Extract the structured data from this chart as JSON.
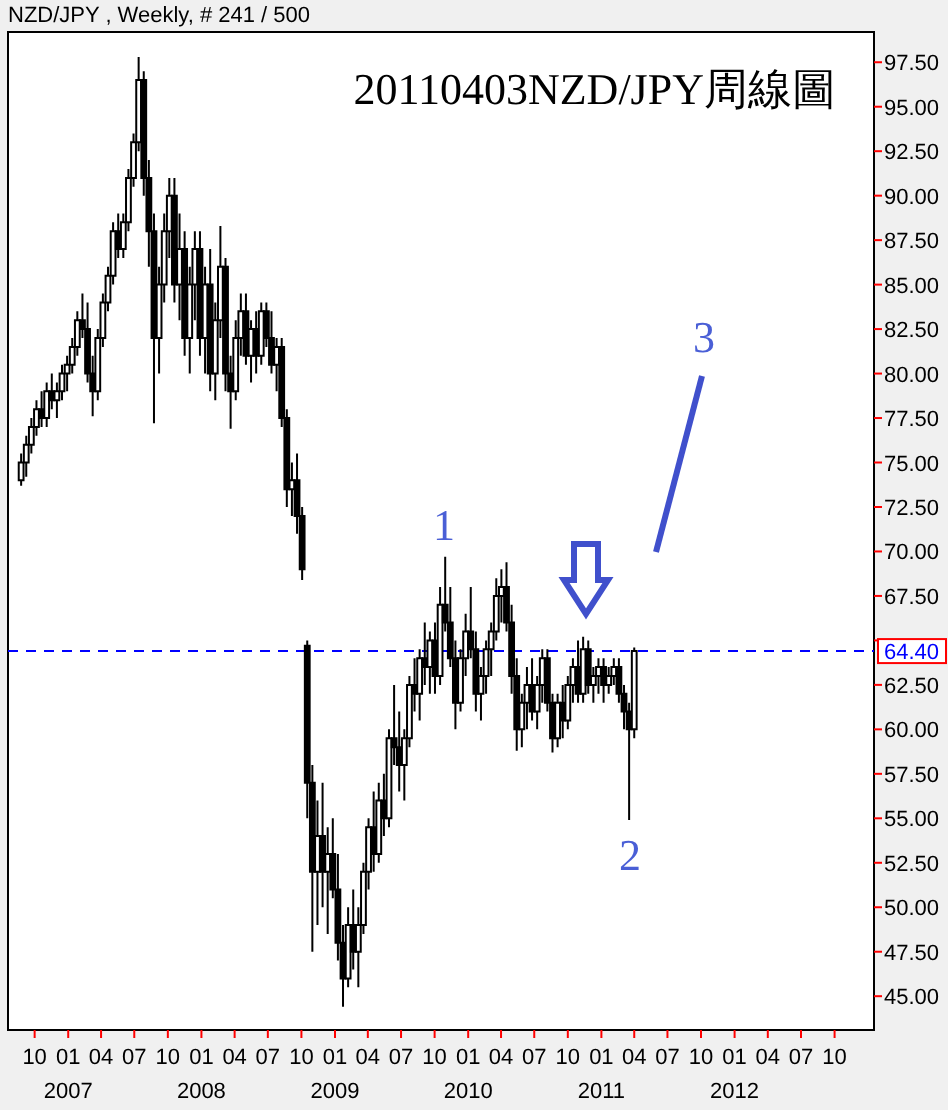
{
  "chart_data": {
    "type": "candlestick",
    "title": "20110403NZD/JPY周線圖",
    "subtitle": "NZD/JPY , Weekly, # 241 / 500",
    "color": "#000000",
    "annotations": [
      "1",
      "2",
      "3"
    ],
    "xlim": [
      "2006-07-20",
      "2013-01-17"
    ],
    "xticks": [
      {
        "value": "2006-10-01",
        "label": "10"
      },
      {
        "value": "2007-01-01",
        "label": "01\n2007"
      },
      {
        "value": "2007-04-01",
        "label": "04"
      },
      {
        "value": "2007-07-01",
        "label": "07"
      },
      {
        "value": "2007-10-01",
        "label": "10"
      },
      {
        "value": "2008-01-01",
        "label": "01\n2008"
      },
      {
        "value": "2008-04-01",
        "label": "04"
      },
      {
        "value": "2008-07-01",
        "label": "07"
      },
      {
        "value": "2008-10-01",
        "label": "10"
      },
      {
        "value": "2009-01-01",
        "label": "01\n2009"
      },
      {
        "value": "2009-04-01",
        "label": "04"
      },
      {
        "value": "2009-07-01",
        "label": "07"
      },
      {
        "value": "2009-10-01",
        "label": "10"
      },
      {
        "value": "2010-01-01",
        "label": "01\n2010"
      },
      {
        "value": "2010-04-01",
        "label": "04"
      },
      {
        "value": "2010-07-01",
        "label": "07"
      },
      {
        "value": "2010-10-01",
        "label": "10"
      },
      {
        "value": "2011-01-01",
        "label": "01\n2011"
      },
      {
        "value": "2011-04-01",
        "label": "04"
      },
      {
        "value": "2011-07-01",
        "label": "07"
      },
      {
        "value": "2011-10-01",
        "label": "10"
      },
      {
        "value": "2012-01-01",
        "label": "01\n2012"
      },
      {
        "value": "2012-04-01",
        "label": "04"
      },
      {
        "value": "2012-07-01",
        "label": "07"
      },
      {
        "value": "2012-10-01",
        "label": "10"
      }
    ],
    "ylim": [
      43.1,
      99.2
    ],
    "yticks": [
      {
        "value": 45,
        "label": "45.00"
      },
      {
        "value": 47.5,
        "label": "47.50"
      },
      {
        "value": 50,
        "label": "50.00"
      },
      {
        "value": 52.5,
        "label": "52.50"
      },
      {
        "value": 55,
        "label": "55.00"
      },
      {
        "value": 57.5,
        "label": "57.50"
      },
      {
        "value": 60,
        "label": "60.00"
      },
      {
        "value": 62.5,
        "label": "62.50"
      },
      {
        "value": 65,
        "label": null
      },
      {
        "value": 67.5,
        "label": "67.50"
      },
      {
        "value": 70,
        "label": "70.00"
      },
      {
        "value": 72.5,
        "label": "72.50"
      },
      {
        "value": 75,
        "label": "75.00"
      },
      {
        "value": 77.5,
        "label": "77.50"
      },
      {
        "value": 80,
        "label": "80.00"
      },
      {
        "value": 82.5,
        "label": "82.50"
      },
      {
        "value": 85,
        "label": "85.00"
      },
      {
        "value": 87.5,
        "label": "87.50"
      },
      {
        "value": 90,
        "label": "90.00"
      },
      {
        "value": 92.5,
        "label": "92.50"
      },
      {
        "value": 95,
        "label": "95.00"
      },
      {
        "value": 97.5,
        "label": "97.50"
      }
    ],
    "ref_lines": [
      {
        "axis": "y",
        "value": 64.4,
        "label": "64.40",
        "color": "#0000ff",
        "line_style": "dashed"
      }
    ],
    "x": [
      "2006-08-25",
      "2006-09-08",
      "2006-09-22",
      "2006-10-06",
      "2006-10-20",
      "2006-11-03",
      "2006-11-17",
      "2006-12-01",
      "2006-12-15",
      "2006-12-29",
      "2007-01-12",
      "2007-01-26",
      "2007-02-09",
      "2007-02-23",
      "2007-03-09",
      "2007-03-23",
      "2007-04-06",
      "2007-04-20",
      "2007-05-04",
      "2007-05-18",
      "2007-06-01",
      "2007-06-15",
      "2007-06-29",
      "2007-07-13",
      "2007-07-27",
      "2007-08-10",
      "2007-08-24",
      "2007-09-07",
      "2007-09-21",
      "2007-10-05",
      "2007-10-19",
      "2007-11-02",
      "2007-11-16",
      "2007-11-30",
      "2007-12-14",
      "2007-12-28",
      "2008-01-11",
      "2008-01-25",
      "2008-02-08",
      "2008-02-22",
      "2008-03-07",
      "2008-03-21",
      "2008-04-04",
      "2008-04-18",
      "2008-05-02",
      "2008-05-16",
      "2008-05-30",
      "2008-06-13",
      "2008-06-27",
      "2008-07-11",
      "2008-07-25",
      "2008-08-08",
      "2008-08-22",
      "2008-09-05",
      "2008-09-19",
      "2008-10-03",
      "2008-10-17",
      "2008-10-31",
      "2008-11-14",
      "2008-11-28",
      "2008-12-12",
      "2008-12-26",
      "2009-01-09",
      "2009-01-23",
      "2009-02-06",
      "2009-02-20",
      "2009-03-06",
      "2009-03-20",
      "2009-04-03",
      "2009-04-17",
      "2009-05-01",
      "2009-05-15",
      "2009-05-29",
      "2009-06-12",
      "2009-06-26",
      "2009-07-10",
      "2009-07-24",
      "2009-08-07",
      "2009-08-21",
      "2009-09-04",
      "2009-09-18",
      "2009-10-02",
      "2009-10-16",
      "2009-10-30",
      "2009-11-13",
      "2009-11-27",
      "2009-12-11",
      "2009-12-25",
      "2010-01-08",
      "2010-01-22",
      "2010-02-05",
      "2010-02-19",
      "2010-03-05",
      "2010-03-19",
      "2010-04-02",
      "2010-04-16",
      "2010-04-30",
      "2010-05-14",
      "2010-05-28",
      "2010-06-11",
      "2010-06-25",
      "2010-07-09",
      "2010-07-23",
      "2010-08-06",
      "2010-08-20",
      "2010-09-03",
      "2010-09-17",
      "2010-10-01",
      "2010-10-15",
      "2010-10-29",
      "2010-11-12",
      "2010-11-26",
      "2010-12-10",
      "2010-12-24",
      "2011-01-07",
      "2011-01-21",
      "2011-02-04",
      "2011-02-18",
      "2011-03-04",
      "2011-03-18",
      "2011-04-01"
    ],
    "ohlc": [
      [
        74,
        75.5,
        73.7,
        75
      ],
      [
        75,
        76.5,
        74.2,
        76
      ],
      [
        76,
        77.5,
        75.5,
        77
      ],
      [
        77,
        78.5,
        76.5,
        78
      ],
      [
        78,
        79,
        77,
        77.5
      ],
      [
        77.5,
        79.5,
        77,
        79
      ],
      [
        79,
        80,
        78,
        78.5
      ],
      [
        78.5,
        79.5,
        77.5,
        79
      ],
      [
        79,
        80.5,
        78.5,
        80
      ],
      [
        80,
        81,
        79,
        80.5
      ],
      [
        80.5,
        82,
        80,
        81.5
      ],
      [
        81.5,
        83.5,
        81,
        83
      ],
      [
        83,
        84.5,
        82,
        82.5
      ],
      [
        82.5,
        84,
        79.5,
        80
      ],
      [
        80,
        81,
        77.6,
        79
      ],
      [
        79,
        82.5,
        78.5,
        82
      ],
      [
        82,
        84.5,
        81.5,
        84
      ],
      [
        84,
        86,
        83.5,
        85.5
      ],
      [
        85.5,
        88.5,
        85,
        88
      ],
      [
        88,
        89,
        86.5,
        87
      ],
      [
        87,
        89,
        86.5,
        88.5
      ],
      [
        88.5,
        91.5,
        88,
        91
      ],
      [
        91,
        93.5,
        90.5,
        93
      ],
      [
        93,
        97.8,
        92.5,
        96.5
      ],
      [
        96.5,
        97,
        90,
        91
      ],
      [
        91,
        92,
        86,
        88
      ],
      [
        88,
        89,
        77.2,
        82
      ],
      [
        82,
        86,
        80,
        85
      ],
      [
        85,
        89,
        84,
        88
      ],
      [
        88,
        91,
        86.5,
        90
      ],
      [
        90,
        91,
        84,
        85
      ],
      [
        85,
        89,
        83,
        87
      ],
      [
        87,
        88,
        81,
        82
      ],
      [
        82,
        86,
        80,
        85
      ],
      [
        85,
        88,
        83,
        87
      ],
      [
        87,
        88,
        81,
        82
      ],
      [
        82,
        86,
        80,
        85
      ],
      [
        85,
        87,
        79,
        80
      ],
      [
        80,
        84,
        78.5,
        83
      ],
      [
        83,
        88.3,
        82,
        86
      ],
      [
        86,
        86.5,
        79,
        80
      ],
      [
        80,
        81,
        76.9,
        79
      ],
      [
        79,
        83,
        78.5,
        82
      ],
      [
        82,
        84.5,
        81,
        83.5
      ],
      [
        83.5,
        84.5,
        80.5,
        81
      ],
      [
        81,
        83,
        79.5,
        82.5
      ],
      [
        82.5,
        83.5,
        80,
        81
      ],
      [
        81,
        84,
        80.5,
        83.5
      ],
      [
        83.5,
        84,
        81.5,
        82
      ],
      [
        82,
        83.5,
        80,
        80.5
      ],
      [
        80.5,
        82,
        79,
        81.5
      ],
      [
        81.5,
        82,
        77,
        77.5
      ],
      [
        77.5,
        78,
        72.5,
        73.5
      ],
      [
        73.5,
        75,
        72,
        74
      ],
      [
        74,
        75.5,
        71,
        72
      ],
      [
        72,
        72.5,
        68.4,
        69
      ],
      [
        64.7,
        65,
        55,
        57
      ],
      [
        57,
        58,
        47.5,
        52
      ],
      [
        52,
        56,
        49,
        54
      ],
      [
        54,
        57,
        50,
        52
      ],
      [
        52,
        54.5,
        48.5,
        53
      ],
      [
        53,
        55,
        50.5,
        51
      ],
      [
        51,
        53,
        47,
        48
      ],
      [
        48,
        49,
        44.4,
        46
      ],
      [
        46,
        50,
        45.5,
        49
      ],
      [
        49,
        51,
        46.5,
        47.5
      ],
      [
        47.5,
        50,
        45.5,
        49
      ],
      [
        49,
        52.5,
        48.5,
        52
      ],
      [
        52,
        55,
        51,
        54.5
      ],
      [
        54.5,
        56.5,
        52,
        53
      ],
      [
        53,
        57,
        52.5,
        56
      ],
      [
        56,
        57.5,
        54,
        55
      ],
      [
        55,
        60,
        54.5,
        59.5
      ],
      [
        59.5,
        62.5,
        58,
        59
      ],
      [
        59,
        61,
        56.5,
        58
      ],
      [
        58,
        60,
        56,
        59.5
      ],
      [
        59.5,
        63,
        59,
        62.5
      ],
      [
        62.5,
        64,
        61,
        62
      ],
      [
        62,
        64.5,
        60.5,
        64
      ],
      [
        64,
        66,
        62.5,
        63.5
      ],
      [
        63.5,
        65.5,
        62,
        65
      ],
      [
        65,
        66,
        62,
        63
      ],
      [
        63,
        68,
        62.5,
        67
      ],
      [
        67,
        69.7,
        65.5,
        66
      ],
      [
        66,
        68,
        63.5,
        64
      ],
      [
        64,
        65,
        60,
        61.5
      ],
      [
        61.5,
        64.5,
        61,
        64
      ],
      [
        64,
        66.5,
        63,
        65.5
      ],
      [
        65.5,
        68,
        64,
        64.5
      ],
      [
        64.5,
        65.5,
        61,
        62
      ],
      [
        62,
        63.5,
        60.5,
        63
      ],
      [
        63,
        65,
        62,
        64.5
      ],
      [
        64.5,
        66,
        63,
        65.5
      ],
      [
        65.5,
        68.5,
        65,
        67.5
      ],
      [
        67.5,
        69,
        66,
        68
      ],
      [
        68,
        69.4,
        65.5,
        66
      ],
      [
        66,
        67,
        62,
        63
      ],
      [
        63,
        64,
        58.8,
        60
      ],
      [
        60,
        62,
        59,
        61.5
      ],
      [
        61.5,
        63.5,
        60,
        62.5
      ],
      [
        62.5,
        64,
        60.5,
        61
      ],
      [
        61,
        63,
        60,
        62.5
      ],
      [
        62.5,
        64.5,
        61.5,
        64
      ],
      [
        64,
        64.5,
        61,
        61.5
      ],
      [
        61.5,
        62,
        58.7,
        59.5
      ],
      [
        59.5,
        62,
        59,
        61.5
      ],
      [
        61.5,
        62.5,
        59.5,
        60.5
      ],
      [
        60.5,
        63,
        60,
        62.5
      ],
      [
        62.5,
        64,
        61.5,
        63.5
      ],
      [
        63.5,
        65,
        61.5,
        62
      ],
      [
        62,
        65.2,
        61.5,
        64.5
      ],
      [
        64.5,
        65,
        62,
        62.5
      ],
      [
        62.5,
        63.5,
        61.5,
        63
      ],
      [
        63,
        64,
        62,
        63.5
      ],
      [
        63.5,
        64,
        61.5,
        62.5
      ],
      [
        62.5,
        63.5,
        62,
        63
      ],
      [
        63,
        64,
        62.5,
        63.5
      ],
      [
        63.5,
        64,
        61.5,
        62
      ],
      [
        62,
        62.5,
        60,
        61
      ],
      [
        61,
        61.5,
        54.9,
        60
      ],
      [
        60,
        64.6,
        59.5,
        64.4
      ]
    ]
  }
}
